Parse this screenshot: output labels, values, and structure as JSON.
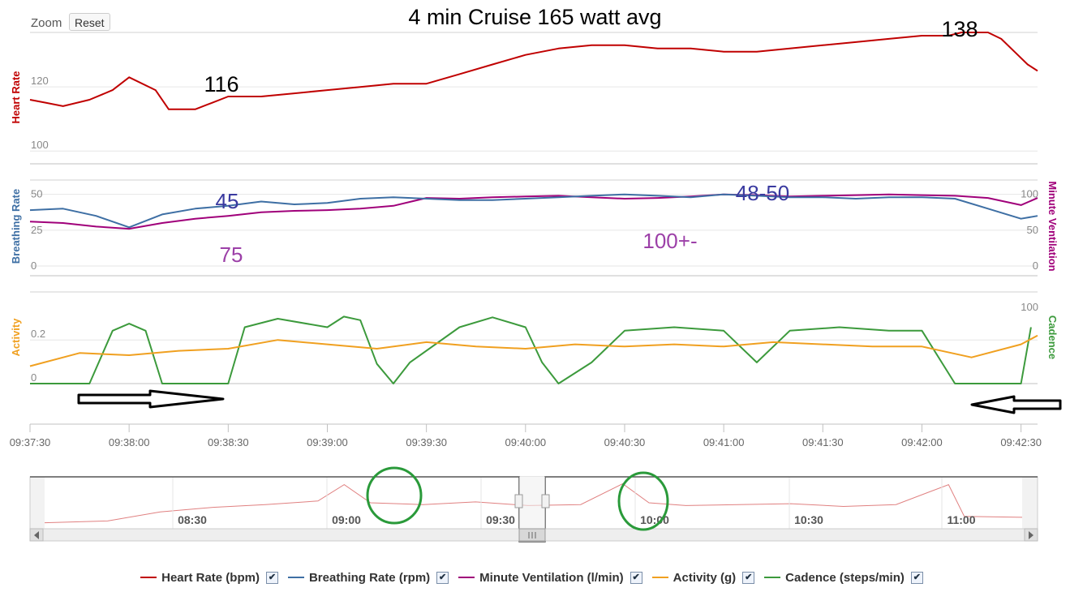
{
  "title": "4 min Cruise 165 watt avg",
  "toolbar": {
    "zoom_label": "Zoom",
    "reset_label": "Reset"
  },
  "colors": {
    "heart_rate": "#c00000",
    "breathing_rate": "#3e6fa4",
    "minute_ventilation": "#a0007a",
    "activity": "#f0a020",
    "cadence": "#3c9a3c",
    "annotation_blue": "#3a3aa0",
    "annotation_purple": "#9c40a8",
    "highlight_circle": "#2a9a3a"
  },
  "annotations": {
    "hr_start": "116",
    "hr_peak": "138",
    "br_start": "45",
    "br_end": "48-50",
    "mv_start": "75",
    "mv_end": "100+-"
  },
  "chart_data": [
    {
      "type": "line",
      "name": "heart-rate-panel",
      "ylabel": "Heart Rate",
      "yticks": [
        "100",
        "120"
      ],
      "ylim": [
        96,
        137
      ],
      "x_start": "09:37:30",
      "x_end": "09:42:35",
      "series": [
        {
          "name": "Heart Rate (bpm)",
          "color": "#c00000",
          "points": [
            [
              "09:37:30",
              116
            ],
            [
              "09:37:35",
              115
            ],
            [
              "09:37:40",
              114
            ],
            [
              "09:37:48",
              116
            ],
            [
              "09:37:55",
              119
            ],
            [
              "09:38:00",
              123
            ],
            [
              "09:38:08",
              119
            ],
            [
              "09:38:12",
              113
            ],
            [
              "09:38:20",
              113
            ],
            [
              "09:38:25",
              115
            ],
            [
              "09:38:30",
              117
            ],
            [
              "09:38:40",
              117
            ],
            [
              "09:38:50",
              118
            ],
            [
              "09:39:00",
              119
            ],
            [
              "09:39:10",
              120
            ],
            [
              "09:39:20",
              121
            ],
            [
              "09:39:30",
              121
            ],
            [
              "09:39:40",
              124
            ],
            [
              "09:39:50",
              127
            ],
            [
              "09:40:00",
              130
            ],
            [
              "09:40:10",
              132
            ],
            [
              "09:40:20",
              133
            ],
            [
              "09:40:30",
              133
            ],
            [
              "09:40:40",
              132
            ],
            [
              "09:40:50",
              132
            ],
            [
              "09:41:00",
              131
            ],
            [
              "09:41:10",
              131
            ],
            [
              "09:41:20",
              132
            ],
            [
              "09:41:30",
              133
            ],
            [
              "09:41:40",
              134
            ],
            [
              "09:41:50",
              135
            ],
            [
              "09:42:00",
              136
            ],
            [
              "09:42:08",
              136
            ],
            [
              "09:42:12",
              137
            ],
            [
              "09:42:20",
              137
            ],
            [
              "09:42:24",
              135
            ],
            [
              "09:42:28",
              131
            ],
            [
              "09:42:32",
              127
            ],
            [
              "09:42:35",
              125
            ]
          ]
        }
      ]
    },
    {
      "type": "line",
      "name": "breathing-panel",
      "ylabel_left": "Breathing Rate",
      "ylabel_right": "Minute Ventilation",
      "yticks_left": [
        "0",
        "25",
        "50"
      ],
      "yticks_right": [
        "0",
        "50",
        "100"
      ],
      "ylim_left": [
        0,
        60
      ],
      "ylim_right": [
        0,
        120
      ],
      "series": [
        {
          "name": "Breathing Rate (rpm)",
          "color": "#3e6fa4",
          "axis": "left",
          "points": [
            [
              "09:37:30",
              39
            ],
            [
              "09:37:40",
              40
            ],
            [
              "09:37:50",
              35
            ],
            [
              "09:38:00",
              27
            ],
            [
              "09:38:10",
              36
            ],
            [
              "09:38:20",
              40
            ],
            [
              "09:38:30",
              42
            ],
            [
              "09:38:40",
              45
            ],
            [
              "09:38:50",
              43
            ],
            [
              "09:39:00",
              44
            ],
            [
              "09:39:10",
              47
            ],
            [
              "09:39:20",
              48
            ],
            [
              "09:39:30",
              47
            ],
            [
              "09:39:40",
              46
            ],
            [
              "09:39:50",
              46
            ],
            [
              "09:40:00",
              47
            ],
            [
              "09:40:10",
              48
            ],
            [
              "09:40:20",
              49
            ],
            [
              "09:40:30",
              50
            ],
            [
              "09:40:40",
              49
            ],
            [
              "09:40:50",
              48
            ],
            [
              "09:41:00",
              50
            ],
            [
              "09:41:10",
              49
            ],
            [
              "09:41:20",
              48
            ],
            [
              "09:41:30",
              48
            ],
            [
              "09:41:40",
              47
            ],
            [
              "09:41:50",
              48
            ],
            [
              "09:42:00",
              48
            ],
            [
              "09:42:10",
              47
            ],
            [
              "09:42:20",
              40
            ],
            [
              "09:42:30",
              33
            ],
            [
              "09:42:35",
              35
            ]
          ]
        },
        {
          "name": "Minute Ventilation (l/min)",
          "color": "#a0007a",
          "axis": "right",
          "points": [
            [
              "09:37:30",
              62
            ],
            [
              "09:37:40",
              60
            ],
            [
              "09:37:50",
              55
            ],
            [
              "09:38:00",
              52
            ],
            [
              "09:38:10",
              60
            ],
            [
              "09:38:20",
              66
            ],
            [
              "09:38:30",
              70
            ],
            [
              "09:38:40",
              75
            ],
            [
              "09:38:50",
              77
            ],
            [
              "09:39:00",
              78
            ],
            [
              "09:39:10",
              80
            ],
            [
              "09:39:20",
              84
            ],
            [
              "09:39:30",
              95
            ],
            [
              "09:39:40",
              94
            ],
            [
              "09:39:50",
              96
            ],
            [
              "09:40:00",
              97
            ],
            [
              "09:40:10",
              98
            ],
            [
              "09:40:20",
              96
            ],
            [
              "09:40:30",
              94
            ],
            [
              "09:40:40",
              95
            ],
            [
              "09:40:50",
              97
            ],
            [
              "09:41:00",
              100
            ],
            [
              "09:41:10",
              99
            ],
            [
              "09:41:20",
              97
            ],
            [
              "09:41:30",
              98
            ],
            [
              "09:41:40",
              99
            ],
            [
              "09:41:50",
              100
            ],
            [
              "09:42:00",
              99
            ],
            [
              "09:42:10",
              98
            ],
            [
              "09:42:20",
              95
            ],
            [
              "09:42:30",
              85
            ],
            [
              "09:42:35",
              95
            ]
          ]
        }
      ]
    },
    {
      "type": "line",
      "name": "activity-panel",
      "ylabel_left": "Activity",
      "ylabel_right": "Cadence",
      "yticks_left": [
        "0",
        "0.2"
      ],
      "yticks_right": [
        "100"
      ],
      "ylim_left": [
        0,
        0.42
      ],
      "ylim_right": [
        0,
        130
      ],
      "series": [
        {
          "name": "Activity (g)",
          "color": "#f0a020",
          "axis": "left",
          "points": [
            [
              "09:37:30",
              0.08
            ],
            [
              "09:37:45",
              0.14
            ],
            [
              "09:38:00",
              0.13
            ],
            [
              "09:38:15",
              0.15
            ],
            [
              "09:38:30",
              0.16
            ],
            [
              "09:38:45",
              0.2
            ],
            [
              "09:39:00",
              0.18
            ],
            [
              "09:39:15",
              0.16
            ],
            [
              "09:39:30",
              0.19
            ],
            [
              "09:39:45",
              0.17
            ],
            [
              "09:40:00",
              0.16
            ],
            [
              "09:40:15",
              0.18
            ],
            [
              "09:40:30",
              0.17
            ],
            [
              "09:40:45",
              0.18
            ],
            [
              "09:41:00",
              0.17
            ],
            [
              "09:41:15",
              0.19
            ],
            [
              "09:41:30",
              0.18
            ],
            [
              "09:41:45",
              0.17
            ],
            [
              "09:42:00",
              0.17
            ],
            [
              "09:42:15",
              0.12
            ],
            [
              "09:42:30",
              0.18
            ],
            [
              "09:42:35",
              0.22
            ]
          ]
        },
        {
          "name": "Cadence (steps/min)",
          "color": "#3c9a3c",
          "axis": "right",
          "points": [
            [
              "09:37:30",
              0
            ],
            [
              "09:37:48",
              0
            ],
            [
              "09:37:55",
              75
            ],
            [
              "09:38:00",
              85
            ],
            [
              "09:38:05",
              75
            ],
            [
              "09:38:10",
              0
            ],
            [
              "09:38:30",
              0
            ],
            [
              "09:38:35",
              80
            ],
            [
              "09:38:45",
              92
            ],
            [
              "09:39:00",
              80
            ],
            [
              "09:39:05",
              95
            ],
            [
              "09:39:10",
              90
            ],
            [
              "09:39:15",
              28
            ],
            [
              "09:39:20",
              0
            ],
            [
              "09:39:25",
              30
            ],
            [
              "09:39:40",
              80
            ],
            [
              "09:39:50",
              94
            ],
            [
              "09:40:00",
              80
            ],
            [
              "09:40:05",
              30
            ],
            [
              "09:40:10",
              0
            ],
            [
              "09:40:20",
              30
            ],
            [
              "09:40:30",
              75
            ],
            [
              "09:40:45",
              80
            ],
            [
              "09:41:00",
              75
            ],
            [
              "09:41:10",
              30
            ],
            [
              "09:41:20",
              75
            ],
            [
              "09:41:35",
              80
            ],
            [
              "09:41:50",
              75
            ],
            [
              "09:42:00",
              75
            ],
            [
              "09:42:10",
              0
            ],
            [
              "09:42:30",
              0
            ],
            [
              "09:42:33",
              80
            ]
          ]
        }
      ]
    },
    {
      "type": "line",
      "name": "navigator",
      "xtick_labels": [
        "08:30",
        "09:00",
        "09:30",
        "10:00",
        "10:30",
        "11:00"
      ],
      "series": [
        {
          "name": "Heart Rate (bpm)",
          "color": "#e08080",
          "points": [
            [
              "08:08",
              98
            ],
            [
              "08:20",
              100
            ],
            [
              "08:30",
              110
            ],
            [
              "08:40",
              115
            ],
            [
              "08:50",
              118
            ],
            [
              "09:00",
              122
            ],
            [
              "09:05",
              140
            ],
            [
              "09:10",
              120
            ],
            [
              "09:20",
              118
            ],
            [
              "09:30",
              121
            ],
            [
              "09:40",
              117
            ],
            [
              "09:50",
              118
            ],
            [
              "09:58",
              141
            ],
            [
              "10:03",
              120
            ],
            [
              "10:10",
              117
            ],
            [
              "10:20",
              118
            ],
            [
              "10:30",
              119
            ],
            [
              "10:40",
              116
            ],
            [
              "10:50",
              118
            ],
            [
              "11:00",
              140
            ],
            [
              "11:03",
              105
            ],
            [
              "11:14",
              104
            ]
          ]
        }
      ]
    }
  ],
  "main_x_ticks": [
    "09:37:30",
    "09:38:00",
    "09:38:30",
    "09:39:00",
    "09:39:30",
    "09:40:00",
    "09:40:30",
    "09:41:00",
    "09:41:30",
    "09:42:00",
    "09:42:30"
  ],
  "legend": [
    {
      "label": "Heart Rate (bpm)",
      "color": "#c00000",
      "checked": true
    },
    {
      "label": "Breathing Rate (rpm)",
      "color": "#3e6fa4",
      "checked": true
    },
    {
      "label": "Minute Ventilation (l/min)",
      "color": "#a0007a",
      "checked": true
    },
    {
      "label": "Activity (g)",
      "color": "#f0a020",
      "checked": true
    },
    {
      "label": "Cadence (steps/min)",
      "color": "#3c9a3c",
      "checked": true
    }
  ]
}
